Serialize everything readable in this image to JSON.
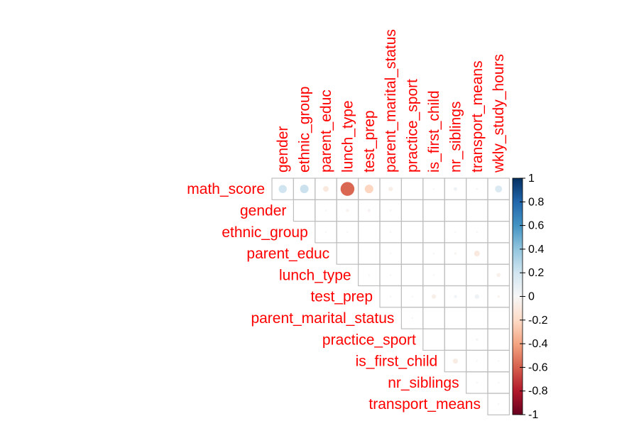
{
  "chart_data": {
    "type": "heatmap",
    "style": "upper-triangular correlation plot with circles (size and color proportional to correlation)",
    "variables": [
      "math_score",
      "gender",
      "ethnic_group",
      "parent_educ",
      "lunch_type",
      "test_prep",
      "parent_marital_status",
      "practice_sport",
      "is_first_child",
      "nr_siblings",
      "transport_means",
      "wkly_study_hours"
    ],
    "row_labels": [
      "math_score",
      "gender",
      "ethnic_group",
      "parent_educ",
      "lunch_type",
      "test_prep",
      "parent_marital_status",
      "practice_sport",
      "is_first_child",
      "nr_siblings",
      "transport_means"
    ],
    "column_labels": [
      "gender",
      "ethnic_group",
      "parent_educ",
      "lunch_type",
      "test_prep",
      "parent_marital_status",
      "practice_sport",
      "is_first_child",
      "nr_siblings",
      "transport_means",
      "wkly_study_hours"
    ],
    "matrix": [
      [
        0.2,
        0.22,
        -0.1,
        -0.58,
        -0.22,
        -0.06,
        0.0,
        -0.01,
        0.04,
        0.01,
        0.15
      ],
      [
        null,
        0.0,
        -0.01,
        -0.03,
        -0.03,
        0.01,
        0.0,
        0.0,
        0.0,
        0.0,
        0.0
      ],
      [
        null,
        null,
        0.01,
        0.01,
        0.0,
        0.01,
        0.0,
        0.0,
        0.01,
        0.01,
        0.0
      ],
      [
        null,
        null,
        null,
        0.0,
        0.0,
        0.01,
        0.0,
        0.01,
        -0.02,
        -0.1,
        0.0
      ],
      [
        null,
        null,
        null,
        null,
        0.01,
        0.01,
        0.0,
        0.01,
        0.0,
        0.0,
        -0.05
      ],
      [
        null,
        null,
        null,
        null,
        null,
        -0.01,
        0.01,
        -0.06,
        0.03,
        0.06,
        -0.02
      ],
      [
        null,
        null,
        null,
        null,
        null,
        null,
        0.01,
        0.0,
        0.0,
        0.0,
        0.0
      ],
      [
        null,
        null,
        null,
        null,
        null,
        null,
        null,
        0.0,
        0.0,
        0.02,
        0.0
      ],
      [
        null,
        null,
        null,
        null,
        null,
        null,
        null,
        null,
        -0.08,
        0.01,
        0.01
      ],
      [
        null,
        null,
        null,
        null,
        null,
        null,
        null,
        null,
        null,
        0.01,
        -0.01
      ],
      [
        null,
        null,
        null,
        null,
        null,
        null,
        null,
        null,
        null,
        null,
        0.01
      ]
    ],
    "colorbar": {
      "ticks": [
        "1",
        "0.8",
        "0.6",
        "0.4",
        "0.2",
        "0",
        "-0.2",
        "-0.4",
        "-0.6",
        "-0.8",
        "-1"
      ],
      "range": [
        -1,
        1
      ],
      "colors": {
        "strong_positive": "#053061",
        "positive": "#2166ac",
        "mid_positive": "#4393c3",
        "light_positive": "#92c5de",
        "pale_positive": "#d1e5f0",
        "zero": "#f7f7f7",
        "pale_negative": "#fddbc7",
        "light_negative": "#f4a582",
        "mid_negative": "#d6604d",
        "negative": "#b2182b",
        "strong_negative": "#67001f"
      }
    },
    "label_color": "#ff0000",
    "grid_color": "#bebebe"
  }
}
